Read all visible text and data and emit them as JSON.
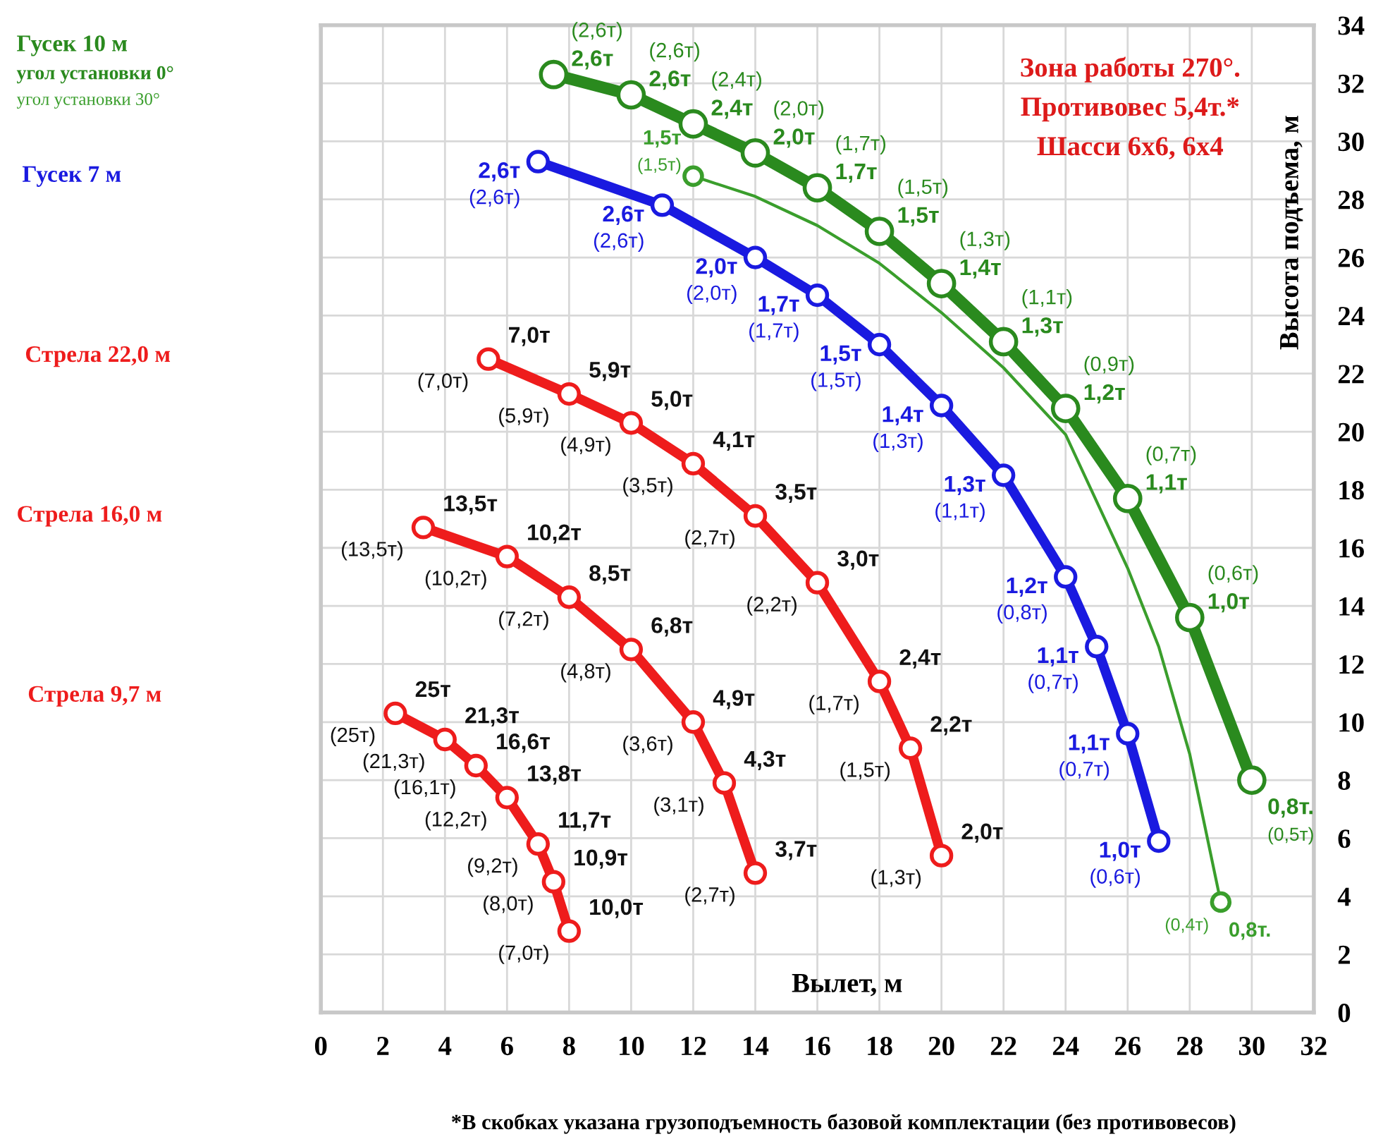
{
  "chart_data": {
    "type": "line",
    "xlabel": "Вылет, м",
    "ylabel": "Высота подъема, м",
    "xlim": [
      0,
      32
    ],
    "xticks": [
      0,
      2,
      4,
      6,
      8,
      10,
      12,
      14,
      16,
      18,
      20,
      22,
      24,
      26,
      28,
      30,
      32
    ],
    "ylim": [
      0,
      34
    ],
    "yticks": [
      0,
      2,
      4,
      6,
      8,
      10,
      12,
      14,
      16,
      18,
      20,
      22,
      24,
      26,
      28,
      30,
      32,
      34
    ],
    "grid": true,
    "legend": "left",
    "marker": "circle",
    "line_style": "solid",
    "series": [
      {
        "name": "угол установки 0°",
        "color": "#2a8a1e",
        "x": [
          7.5,
          10,
          12,
          14,
          16,
          18,
          20,
          22,
          24,
          26,
          28,
          30
        ],
        "values": [
          32.3,
          31.6,
          30.6,
          29.6,
          28.4,
          26.9,
          25.1,
          23.1,
          20.8,
          17.7,
          13.6,
          8.0
        ]
      },
      {
        "name": "угол установки 30°",
        "color": "#3a9e2c",
        "marker": "none",
        "x": [
          12,
          14,
          16,
          18,
          20,
          22,
          24,
          26,
          27,
          28,
          29
        ],
        "values": [
          28.8,
          28.1,
          27.1,
          25.8,
          24.1,
          22.2,
          19.9,
          15.3,
          12.6,
          8.9,
          3.8
        ]
      },
      {
        "name": "Гусек 7 м",
        "color": "#1a1ae0",
        "x": [
          7,
          11,
          14,
          16,
          18,
          20,
          22,
          24,
          25,
          26,
          27
        ],
        "values": [
          29.3,
          27.8,
          26.0,
          24.7,
          23.0,
          20.9,
          18.5,
          15.0,
          12.6,
          9.6,
          5.9
        ]
      },
      {
        "name": "Стрела 22,0 м",
        "color": "#ee1c1c",
        "x": [
          5.4,
          8,
          10,
          12,
          14,
          16,
          18,
          19,
          20
        ],
        "values": [
          22.5,
          21.3,
          20.3,
          18.9,
          17.1,
          14.8,
          11.4,
          9.1,
          5.4
        ]
      },
      {
        "name": "Стрела 16,0 м",
        "color": "#ee1c1c",
        "x": [
          3.3,
          6,
          8,
          10,
          12,
          13,
          14
        ],
        "values": [
          16.7,
          15.7,
          14.3,
          12.5,
          10.0,
          7.9,
          4.8
        ]
      },
      {
        "name": "Стрела 9,7 м",
        "color": "#ee1c1c",
        "x": [
          2.4,
          4,
          5,
          6,
          7,
          7.5,
          8
        ],
        "values": [
          10.3,
          9.4,
          8.5,
          7.4,
          5.8,
          4.5,
          2.8
        ]
      },
      {
        "type": "scatter",
        "color": "#3a9e2c",
        "x": [
          12,
          29
        ],
        "values": [
          28.8,
          3.8
        ]
      }
    ],
    "annotations": [
      "Гусек 10 м",
      "Зона работы 270°.",
      "Противовес 5,4т.*",
      "Шасси 6х6, 6х4",
      {
        "text": "2,6т",
        "x": 7.5,
        "y": 32.3
      },
      {
        "text": "(2,6т)",
        "x": 7.5,
        "y": 32.3
      },
      {
        "text": "2,6т",
        "x": 10,
        "y": 31.6
      },
      {
        "text": "(2,6т)",
        "x": 10,
        "y": 31.6
      },
      {
        "text": "2,4т",
        "x": 12,
        "y": 30.6
      },
      {
        "text": "(2,4т)",
        "x": 12,
        "y": 30.6
      },
      {
        "text": "2,0т",
        "x": 14,
        "y": 29.6
      },
      {
        "text": "(2,0т)",
        "x": 14,
        "y": 29.6
      },
      {
        "text": "1,7т",
        "x": 16,
        "y": 28.4
      },
      {
        "text": "(1,7т)",
        "x": 16,
        "y": 28.4
      },
      {
        "text": "1,5т",
        "x": 18,
        "y": 26.9
      },
      {
        "text": "(1,5т)",
        "x": 18,
        "y": 26.9
      },
      {
        "text": "1,4т",
        "x": 20,
        "y": 25.1
      },
      {
        "text": "(1,3т)",
        "x": 20,
        "y": 25.1
      },
      {
        "text": "1,3т",
        "x": 22,
        "y": 23.1
      },
      {
        "text": "(1,1т)",
        "x": 22,
        "y": 23.1
      },
      {
        "text": "1,2т",
        "x": 24,
        "y": 20.8
      },
      {
        "text": "(0,9т)",
        "x": 24,
        "y": 20.8
      },
      {
        "text": "1,1т",
        "x": 26,
        "y": 17.7
      },
      {
        "text": "(0,7т)",
        "x": 26,
        "y": 17.7
      },
      {
        "text": "1,0т",
        "x": 28,
        "y": 13.6
      },
      {
        "text": "(0,6т)",
        "x": 28,
        "y": 13.6
      },
      {
        "text": "0,8т.",
        "x": 30,
        "y": 8.0
      },
      {
        "text": "(0,5т)",
        "x": 30,
        "y": 8.0
      },
      {
        "text": "1,5т",
        "x": 12,
        "y": 28.8
      },
      {
        "text": "(1,5т)",
        "x": 12,
        "y": 28.8
      },
      {
        "text": "0,8т.",
        "x": 29,
        "y": 3.8
      },
      {
        "text": "(0,4т)",
        "x": 29,
        "y": 3.8
      },
      {
        "text": "2,6т",
        "x": 7,
        "y": 29.3
      },
      {
        "text": "(2,6т)",
        "x": 7,
        "y": 29.3
      },
      {
        "text": "2,6т",
        "x": 11,
        "y": 27.8
      },
      {
        "text": "(2,6т)",
        "x": 11,
        "y": 27.8
      },
      {
        "text": "2,0т",
        "x": 14,
        "y": 26.0
      },
      {
        "text": "(2,0т)",
        "x": 14,
        "y": 26.0
      },
      {
        "text": "1,7т",
        "x": 16,
        "y": 24.7
      },
      {
        "text": "(1,7т)",
        "x": 16,
        "y": 24.7
      },
      {
        "text": "1,5т",
        "x": 18,
        "y": 23.0
      },
      {
        "text": "(1,5т)",
        "x": 18,
        "y": 23.0
      },
      {
        "text": "1,4т",
        "x": 20,
        "y": 20.9
      },
      {
        "text": "(1,3т)",
        "x": 20,
        "y": 20.9
      },
      {
        "text": "1,3т",
        "x": 22,
        "y": 18.5
      },
      {
        "text": "(1,1т)",
        "x": 22,
        "y": 18.5
      },
      {
        "text": "1,2т",
        "x": 24,
        "y": 15.0
      },
      {
        "text": "(0,8т)",
        "x": 24,
        "y": 15.0
      },
      {
        "text": "1,1т",
        "x": 25,
        "y": 12.6
      },
      {
        "text": "(0,7т)",
        "x": 25,
        "y": 12.6
      },
      {
        "text": "1,1т",
        "x": 26,
        "y": 9.6
      },
      {
        "text": "(0,7т)",
        "x": 26,
        "y": 9.6
      },
      {
        "text": "1,0т",
        "x": 27,
        "y": 5.9
      },
      {
        "text": "(0,6т)",
        "x": 27,
        "y": 5.9
      },
      {
        "text": "7,0т",
        "x": 5.4,
        "y": 22.5
      },
      {
        "text": "(7,0т)",
        "x": 5.4,
        "y": 22.5
      },
      {
        "text": "5,9т",
        "x": 8,
        "y": 21.3
      },
      {
        "text": "(5,9т)",
        "x": 8,
        "y": 21.3
      },
      {
        "text": "5,0т",
        "x": 10,
        "y": 20.3
      },
      {
        "text": "(4,9т)",
        "x": 10,
        "y": 20.3
      },
      {
        "text": "4,1т",
        "x": 12,
        "y": 18.9
      },
      {
        "text": "(3,5т)",
        "x": 12,
        "y": 18.9
      },
      {
        "text": "3,5т",
        "x": 14,
        "y": 17.1
      },
      {
        "text": "(2,7т)",
        "x": 14,
        "y": 17.1
      },
      {
        "text": "3,0т",
        "x": 16,
        "y": 14.8
      },
      {
        "text": "(2,2т)",
        "x": 16,
        "y": 14.8
      },
      {
        "text": "2,4т",
        "x": 18,
        "y": 11.4
      },
      {
        "text": "(1,7т)",
        "x": 18,
        "y": 11.4
      },
      {
        "text": "2,2т",
        "x": 19,
        "y": 9.1
      },
      {
        "text": "(1,5т)",
        "x": 19,
        "y": 9.1
      },
      {
        "text": "2,0т",
        "x": 20,
        "y": 5.4
      },
      {
        "text": "(1,3т)",
        "x": 20,
        "y": 5.4
      },
      {
        "text": "13,5т",
        "x": 3.3,
        "y": 16.7
      },
      {
        "text": "(13,5т)",
        "x": 3.3,
        "y": 16.7
      },
      {
        "text": "10,2т",
        "x": 6,
        "y": 15.7
      },
      {
        "text": "(10,2т)",
        "x": 6,
        "y": 15.7
      },
      {
        "text": "8,5т",
        "x": 8,
        "y": 14.3
      },
      {
        "text": "(7,2т)",
        "x": 8,
        "y": 14.3
      },
      {
        "text": "6,8т",
        "x": 10,
        "y": 12.5
      },
      {
        "text": "(4,8т)",
        "x": 10,
        "y": 12.5
      },
      {
        "text": "4,9т",
        "x": 12,
        "y": 10.0
      },
      {
        "text": "(3,6т)",
        "x": 12,
        "y": 10.0
      },
      {
        "text": "4,3т",
        "x": 13,
        "y": 7.9
      },
      {
        "text": "(3,1т)",
        "x": 13,
        "y": 7.9
      },
      {
        "text": "3,7т",
        "x": 14,
        "y": 4.8
      },
      {
        "text": "(2,7т)",
        "x": 14,
        "y": 4.8
      },
      {
        "text": "25т",
        "x": 2.4,
        "y": 10.3
      },
      {
        "text": "(25т)",
        "x": 2.4,
        "y": 10.3
      },
      {
        "text": "21,3т",
        "x": 4,
        "y": 9.4
      },
      {
        "text": "(21,3т)",
        "x": 4,
        "y": 9.4
      },
      {
        "text": "16,6т",
        "x": 5,
        "y": 8.5
      },
      {
        "text": "(16,1т)",
        "x": 5,
        "y": 8.5
      },
      {
        "text": "13,8т",
        "x": 6,
        "y": 7.4
      },
      {
        "text": "(12,2т)",
        "x": 6,
        "y": 7.4
      },
      {
        "text": "11,7т",
        "x": 7,
        "y": 5.8
      },
      {
        "text": "(9,2т)",
        "x": 7,
        "y": 5.8
      },
      {
        "text": "10,9т",
        "x": 7.5,
        "y": 4.5
      },
      {
        "text": "(8,0т)",
        "x": 7.5,
        "y": 4.5
      },
      {
        "text": "10,0т",
        "x": 8,
        "y": 2.8
      },
      {
        "text": "(7,0т)",
        "x": 8,
        "y": 2.8
      },
      "*В скобках указана грузоподъемность базовой комплектации (без противовесов)"
    ]
  }
}
